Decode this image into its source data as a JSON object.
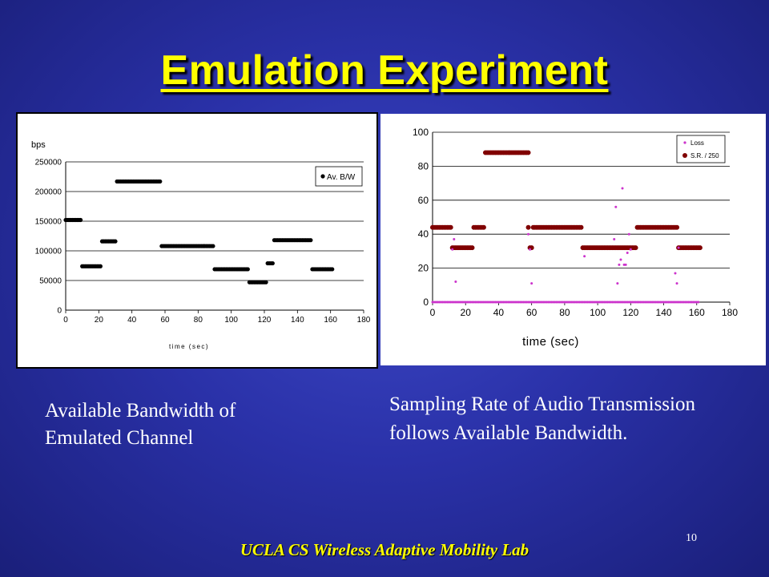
{
  "slide": {
    "title": "Emulation Experiment",
    "caption_left": "Available Bandwidth of Emulated Channel",
    "caption_right": "Sampling Rate of Audio Transmission  follows Available Bandwidth.",
    "footer": "UCLA CS Wireless Adaptive Mobility Lab",
    "page_number": "10",
    "colors": {
      "background": "#2a31a8",
      "title": "#ffff00",
      "text": "#ffffff",
      "loss_series": "#cc33cc",
      "sr_series": "#800000",
      "bw_series": "#000000"
    }
  },
  "chart_data": [
    {
      "type": "scatter",
      "ylabel": "bps",
      "xlabel": "time (sec)",
      "xlim": [
        0,
        180
      ],
      "ylim": [
        0,
        250000
      ],
      "x_ticks": [
        "0",
        "20",
        "40",
        "60",
        "80",
        "100",
        "120",
        "140",
        "160",
        "180"
      ],
      "y_ticks": [
        "0",
        "50000",
        "100000",
        "150000",
        "200000",
        "250000"
      ],
      "grid": "horizontal",
      "legend_position": "top-right",
      "series": [
        {
          "name": "Av. B/W",
          "segments": [
            {
              "x_start": 0,
              "x_end": 9,
              "y": 152000
            },
            {
              "x_start": 10,
              "x_end": 21,
              "y": 74000
            },
            {
              "x_start": 22,
              "x_end": 30,
              "y": 116000
            },
            {
              "x_start": 31,
              "x_end": 57,
              "y": 217000
            },
            {
              "x_start": 58,
              "x_end": 89,
              "y": 108000
            },
            {
              "x_start": 90,
              "x_end": 110,
              "y": 69000
            },
            {
              "x_start": 111,
              "x_end": 121,
              "y": 47000
            },
            {
              "x_start": 122,
              "x_end": 125,
              "y": 79000
            },
            {
              "x_start": 126,
              "x_end": 148,
              "y": 118000
            },
            {
              "x_start": 149,
              "x_end": 161,
              "y": 69000
            }
          ]
        }
      ]
    },
    {
      "type": "scatter",
      "xlabel": "time (sec)",
      "ylabel": "",
      "xlim": [
        0,
        180
      ],
      "ylim": [
        0,
        100
      ],
      "x_ticks": [
        "0",
        "20",
        "40",
        "60",
        "80",
        "100",
        "120",
        "140",
        "160",
        "180"
      ],
      "y_ticks": [
        "0",
        "20",
        "40",
        "60",
        "80",
        "100"
      ],
      "grid": "horizontal",
      "legend_position": "top-right",
      "series": [
        {
          "name": "Loss",
          "baseline": {
            "x_start": 0,
            "x_end": 161,
            "y": 0
          },
          "points": [
            [
              12,
              31
            ],
            [
              13,
              37
            ],
            [
              14,
              12
            ],
            [
              58,
              40
            ],
            [
              59,
              31
            ],
            [
              60,
              11
            ],
            [
              92,
              27
            ],
            [
              110,
              37
            ],
            [
              111,
              56
            ],
            [
              112,
              11
            ],
            [
              113,
              22
            ],
            [
              114,
              25
            ],
            [
              115,
              67
            ],
            [
              116,
              22
            ],
            [
              117,
              22
            ],
            [
              118,
              29
            ],
            [
              119,
              40
            ],
            [
              120,
              31
            ],
            [
              147,
              17
            ],
            [
              148,
              11
            ],
            [
              149,
              32
            ]
          ]
        },
        {
          "name": "S.R. / 250",
          "segments": [
            {
              "x_start": 0,
              "x_end": 11,
              "y": 44
            },
            {
              "x_start": 12,
              "x_end": 24,
              "y": 32
            },
            {
              "x_start": 25,
              "x_end": 31,
              "y": 44
            },
            {
              "x_start": 32,
              "x_end": 58,
              "y": 88
            },
            {
              "x_start": 59,
              "x_end": 60,
              "y": 32
            },
            {
              "x_start": 61,
              "x_end": 90,
              "y": 44
            },
            {
              "x_start": 91,
              "x_end": 123,
              "y": 32
            },
            {
              "x_start": 124,
              "x_end": 148,
              "y": 44
            },
            {
              "x_start": 149,
              "x_end": 162,
              "y": 32
            }
          ],
          "extra_points": [
            [
              58,
              44
            ]
          ]
        }
      ]
    }
  ]
}
